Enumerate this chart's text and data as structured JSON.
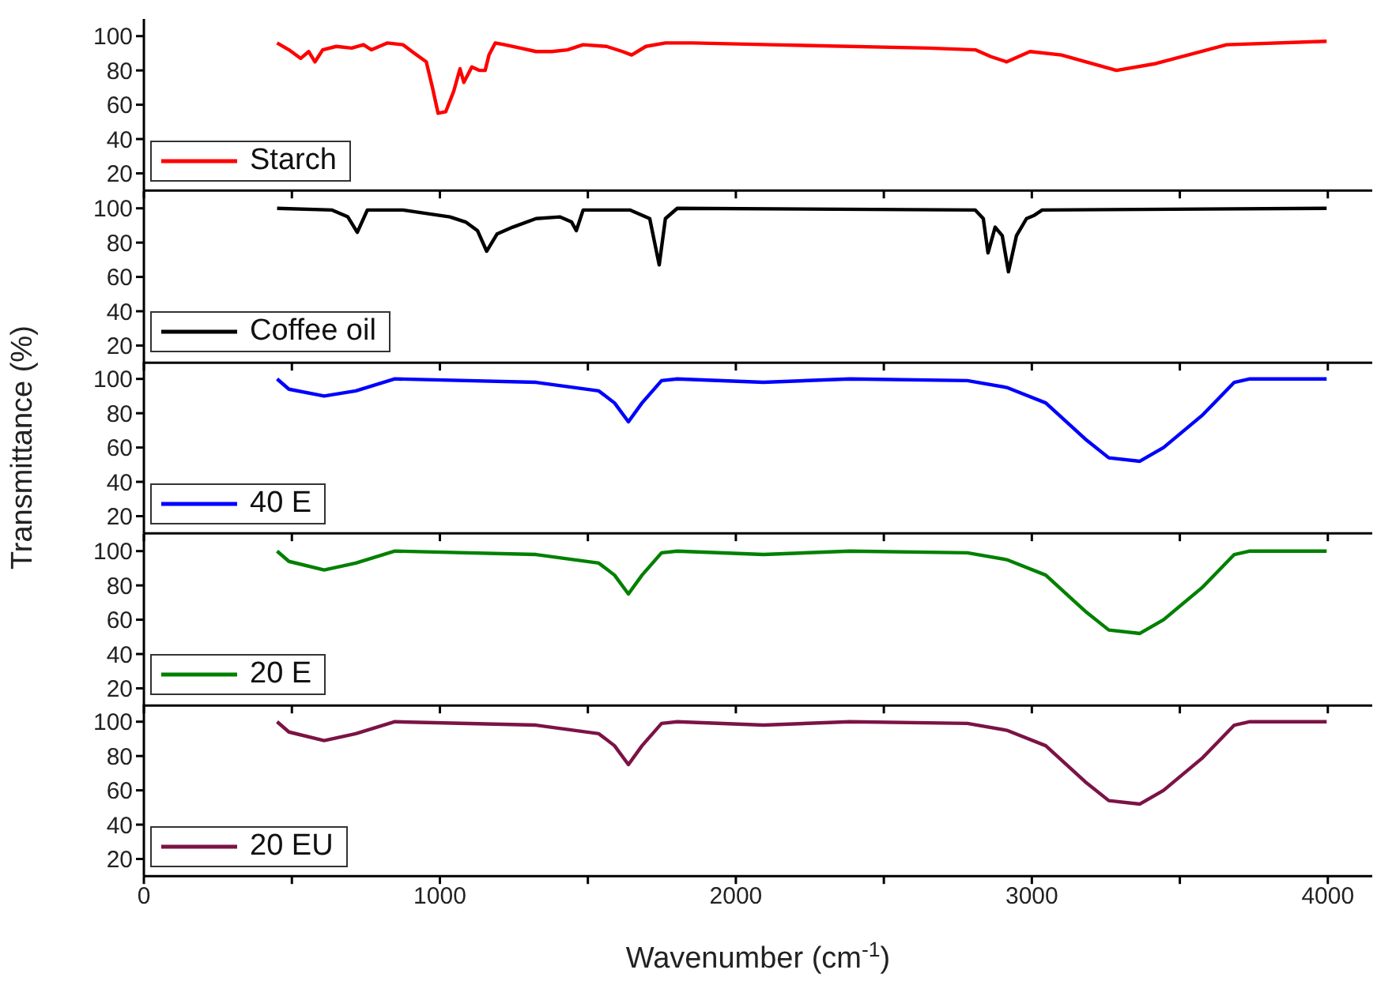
{
  "chart_data": [
    {
      "type": "line",
      "legend": "bottom left",
      "tick_labels": "y",
      "xlim": [
        0,
        4150
      ],
      "xticks": [
        {
          "value": 0,
          "label": null
        },
        {
          "value": 500,
          "label": null
        },
        {
          "value": 1000,
          "label": null
        },
        {
          "value": 1500,
          "label": null
        },
        {
          "value": 2000,
          "label": null
        },
        {
          "value": 2500,
          "label": null
        },
        {
          "value": 3000,
          "label": null
        },
        {
          "value": 3500,
          "label": null
        },
        {
          "value": 4000,
          "label": null
        }
      ],
      "ylim": [
        10,
        110
      ],
      "yticks": [
        20,
        40,
        60,
        80,
        100
      ],
      "series": [
        {
          "name": "Starch",
          "color": "#ff0000",
          "x": [
            450,
            490,
            530,
            557,
            578,
            604,
            650,
            702,
            742,
            769,
            822,
            875,
            914,
            954,
            975,
            994,
            1020,
            1047,
            1068,
            1081,
            1108,
            1134,
            1153,
            1166,
            1187,
            1219,
            1272,
            1325,
            1378,
            1431,
            1484,
            1563,
            1617,
            1648,
            1696,
            1762,
            1855,
            2120,
            2650,
            2809,
            2862,
            2915,
            2994,
            3100,
            3286,
            3419,
            3658,
            3996
          ],
          "values": [
            96,
            92,
            87,
            91,
            85,
            92,
            94,
            93,
            95,
            92,
            96,
            95,
            90,
            85,
            70,
            55,
            56,
            68,
            81,
            73,
            82,
            80,
            80,
            89,
            96,
            95,
            93,
            91,
            91,
            92,
            95,
            94,
            91,
            89,
            94,
            96,
            96,
            95,
            93,
            92,
            88,
            85,
            91,
            89,
            80,
            84,
            95,
            97
          ]
        }
      ]
    },
    {
      "type": "line",
      "legend": "bottom left",
      "tick_labels": "y",
      "xlim": [
        0,
        4150
      ],
      "xticks": [
        {
          "value": 0,
          "label": null
        },
        {
          "value": 500,
          "label": null
        },
        {
          "value": 1000,
          "label": null
        },
        {
          "value": 1500,
          "label": null
        },
        {
          "value": 2000,
          "label": null
        },
        {
          "value": 2500,
          "label": null
        },
        {
          "value": 3000,
          "label": null
        },
        {
          "value": 3500,
          "label": null
        },
        {
          "value": 4000,
          "label": null
        }
      ],
      "ylim": [
        10,
        110
      ],
      "yticks": [
        20,
        40,
        60,
        80,
        100
      ],
      "series": [
        {
          "name": "Coffee oil",
          "color": "#000000",
          "x": [
            450,
            636,
            689,
            721,
            755,
            875,
            1034,
            1087,
            1127,
            1158,
            1193,
            1246,
            1325,
            1405,
            1445,
            1461,
            1484,
            1643,
            1709,
            1741,
            1762,
            1802,
            2809,
            2836,
            2852,
            2876,
            2900,
            2921,
            2948,
            2982,
            3009,
            3035,
            3996
          ],
          "values": [
            100,
            99,
            95,
            86,
            99,
            99,
            95,
            92,
            87,
            75,
            85,
            89,
            94,
            95,
            92,
            87,
            99,
            99,
            94,
            67,
            94,
            100,
            99,
            94,
            74,
            89,
            84,
            63,
            84,
            94,
            96,
            99,
            100
          ]
        }
      ]
    },
    {
      "type": "line",
      "legend": "bottom left",
      "tick_labels": "y",
      "ylabel": "Transmittance (%)",
      "xlim": [
        0,
        4150
      ],
      "xticks": [
        {
          "value": 0,
          "label": null
        },
        {
          "value": 500,
          "label": null
        },
        {
          "value": 1000,
          "label": null
        },
        {
          "value": 1500,
          "label": null
        },
        {
          "value": 2000,
          "label": null
        },
        {
          "value": 2500,
          "label": null
        },
        {
          "value": 3000,
          "label": null
        },
        {
          "value": 3500,
          "label": null
        },
        {
          "value": 4000,
          "label": null
        }
      ],
      "ylim": [
        10,
        110
      ],
      "yticks": [
        20,
        40,
        60,
        80,
        100
      ],
      "series": [
        {
          "name": "40 E",
          "color": "#0000ff",
          "x": [
            450,
            490,
            609,
            716,
            848,
            1325,
            1537,
            1590,
            1637,
            1683,
            1749,
            1802,
            2093,
            2385,
            2782,
            2915,
            3047,
            3180,
            3260,
            3365,
            3445,
            3577,
            3684,
            3737,
            3996
          ],
          "values": [
            100,
            94,
            90,
            93,
            100,
            98,
            93,
            86,
            75,
            86,
            99,
            100,
            98,
            100,
            99,
            95,
            86,
            65,
            54,
            52,
            60,
            79,
            98,
            100,
            100
          ]
        }
      ]
    },
    {
      "type": "line",
      "legend": "bottom left",
      "tick_labels": "y",
      "xlim": [
        0,
        4150
      ],
      "xticks": [
        {
          "value": 0,
          "label": null
        },
        {
          "value": 500,
          "label": null
        },
        {
          "value": 1000,
          "label": null
        },
        {
          "value": 1500,
          "label": null
        },
        {
          "value": 2000,
          "label": null
        },
        {
          "value": 2500,
          "label": null
        },
        {
          "value": 3000,
          "label": null
        },
        {
          "value": 3500,
          "label": null
        },
        {
          "value": 4000,
          "label": null
        }
      ],
      "ylim": [
        10,
        110
      ],
      "yticks": [
        20,
        40,
        60,
        80,
        100
      ],
      "series": [
        {
          "name": "20 E",
          "color": "#008000",
          "x": [
            450,
            490,
            609,
            716,
            848,
            1325,
            1537,
            1590,
            1637,
            1683,
            1749,
            1802,
            2093,
            2385,
            2782,
            2915,
            3047,
            3180,
            3260,
            3365,
            3445,
            3577,
            3684,
            3737,
            3996
          ],
          "values": [
            100,
            94,
            89,
            93,
            100,
            98,
            93,
            86,
            75,
            86,
            99,
            100,
            98,
            100,
            99,
            95,
            86,
            65,
            54,
            52,
            60,
            79,
            98,
            100,
            100
          ]
        }
      ]
    },
    {
      "type": "line",
      "legend": "bottom left",
      "xlabel": "Wavenumber (cm$^{-1}$)",
      "xlim": [
        0,
        4150
      ],
      "xticks": [
        0,
        {
          "value": 500,
          "label": null
        },
        1000,
        {
          "value": 1500,
          "label": null
        },
        2000,
        {
          "value": 2500,
          "label": null
        },
        3000,
        {
          "value": 3500,
          "label": null
        },
        4000
      ],
      "ylim": [
        10,
        110
      ],
      "yticks": [
        20,
        40,
        60,
        80,
        100
      ],
      "series": [
        {
          "name": "20 EU",
          "color": "#7b1346",
          "x": [
            450,
            490,
            609,
            716,
            848,
            1325,
            1537,
            1590,
            1637,
            1683,
            1749,
            1802,
            2093,
            2385,
            2782,
            2915,
            3047,
            3180,
            3260,
            3365,
            3445,
            3577,
            3684,
            3737,
            3996
          ],
          "values": [
            100,
            94,
            89,
            93,
            100,
            98,
            93,
            86,
            75,
            86,
            99,
            100,
            98,
            100,
            99,
            95,
            86,
            65,
            54,
            52,
            60,
            79,
            98,
            100,
            100
          ]
        }
      ]
    }
  ]
}
